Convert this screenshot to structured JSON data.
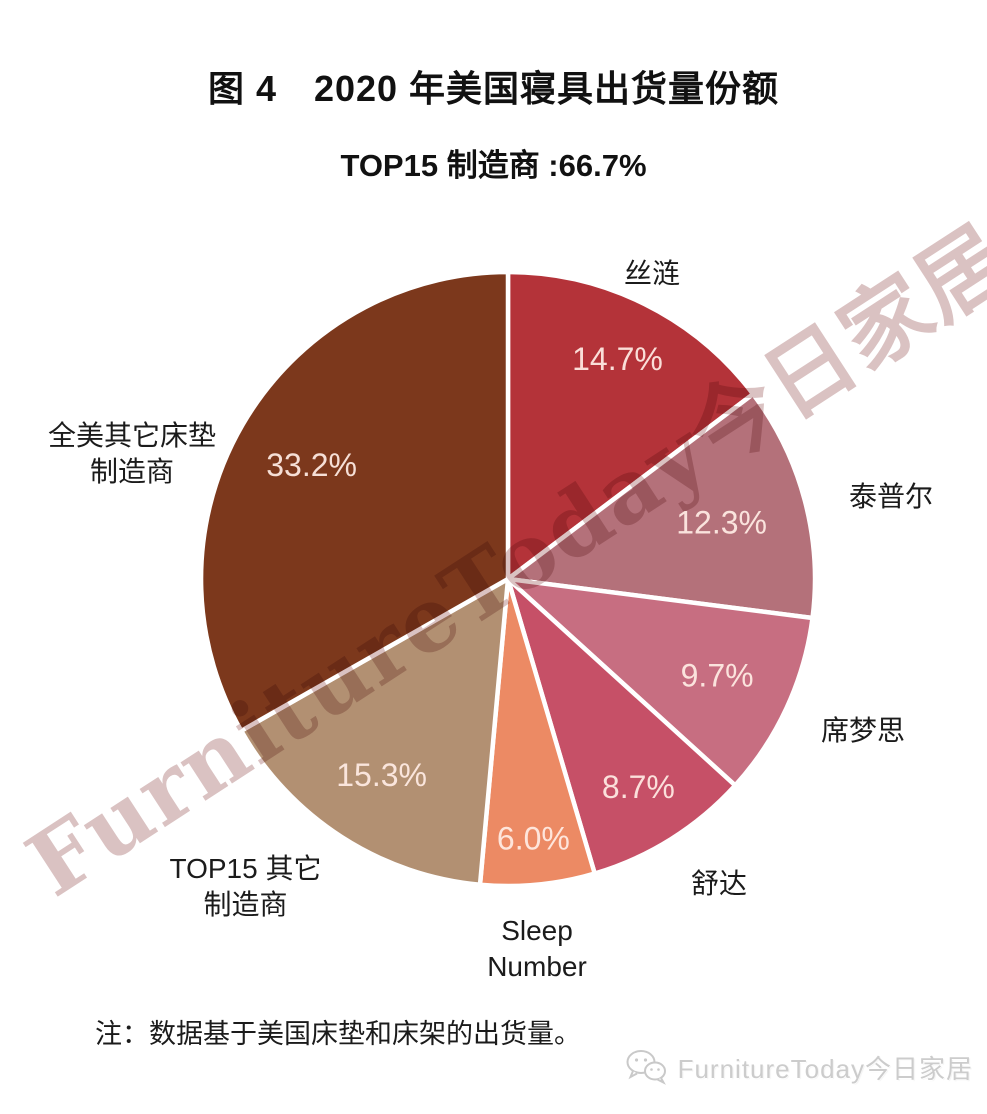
{
  "figure": {
    "title": "图 4　2020 年美国寝具出货量份额",
    "subtitle": "TOP15 制造商 :66.7%",
    "note": "注：数据基于美国床垫和床架的出货量。",
    "watermark_diagonal": "FurnitureToday今日家居",
    "footer_brand": "FurnitureToday今日家居"
  },
  "chart_data": {
    "type": "pie",
    "title": "2020 年美国寝具出货量份额",
    "subtitle": "TOP15 制造商 :66.7%",
    "unit": "%",
    "direction": "clockwise",
    "start_angle_deg": 0,
    "slices": [
      {
        "label": "丝涟",
        "value": 14.7,
        "display": "14.7%",
        "color": "#b43339"
      },
      {
        "label": "泰普尔",
        "value": 12.3,
        "display": "12.3%",
        "color": "#b4717a"
      },
      {
        "label": "席梦思",
        "value": 9.7,
        "display": "9.7%",
        "color": "#c76e81"
      },
      {
        "label": "舒达",
        "value": 8.7,
        "display": "8.7%",
        "color": "#c65067"
      },
      {
        "label": "Sleep Number",
        "value": 6.0,
        "display": "6.0%",
        "color": "#ec8a64"
      },
      {
        "label": "TOP15 其它制造商",
        "value": 15.3,
        "display": "15.3%",
        "color": "#b29072"
      },
      {
        "label": "全美其它床垫制造商",
        "value": 33.2,
        "display": "33.2%",
        "color": "#7c381c"
      }
    ],
    "layout": {
      "legend": "none",
      "labels_outside": true,
      "values_inside": true,
      "label_radius_frac": [
        0.8,
        0.72,
        0.75,
        0.8,
        0.85,
        0.76,
        0.74
      ]
    }
  },
  "colors": {
    "slice_border": "#ffffff",
    "value_label": "#f4e3dc",
    "label_text": "#1b1b1b",
    "watermark": "#a86e6e",
    "footer_text": "#cccccc"
  }
}
